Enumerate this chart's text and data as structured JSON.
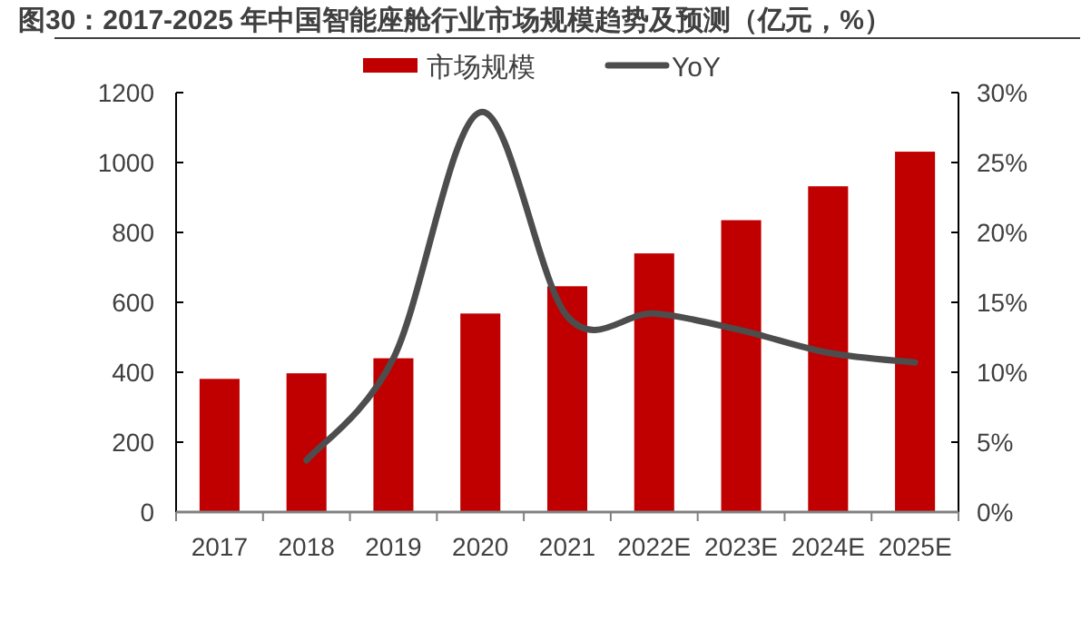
{
  "chart_data": {
    "type": "bar",
    "title": "图30：2017-2025 年中国智能座舱行业市场规模趋势及预测（亿元，%）",
    "categories": [
      "2017",
      "2018",
      "2019",
      "2020",
      "2021",
      "2022E",
      "2023E",
      "2024E",
      "2025E"
    ],
    "series": [
      {
        "name": "市场规模",
        "color": "#c00000",
        "values": [
          381,
          397,
          440,
          568,
          646,
          740,
          835,
          932,
          1031
        ]
      },
      {
        "name": "YoY",
        "type": "line",
        "axis": "y2",
        "color": "#4d4d4d",
        "values": [
          null,
          3.7,
          11,
          28.6,
          14,
          14.2,
          13,
          11.4,
          10.7
        ]
      }
    ],
    "ylim": [
      0,
      1200
    ],
    "yticks": [
      0,
      200,
      400,
      600,
      800,
      1000,
      1200
    ],
    "y2lim": [
      0,
      30
    ],
    "y2ticks": [
      {
        "value": 0,
        "label": "0%"
      },
      {
        "value": 5,
        "label": "5%"
      },
      {
        "value": 10,
        "label": "10%"
      },
      {
        "value": 15,
        "label": "15%"
      },
      {
        "value": 20,
        "label": "20%"
      },
      {
        "value": 25,
        "label": "25%"
      },
      {
        "value": 30,
        "label": "30%"
      }
    ],
    "legend": "top",
    "grid": false
  }
}
